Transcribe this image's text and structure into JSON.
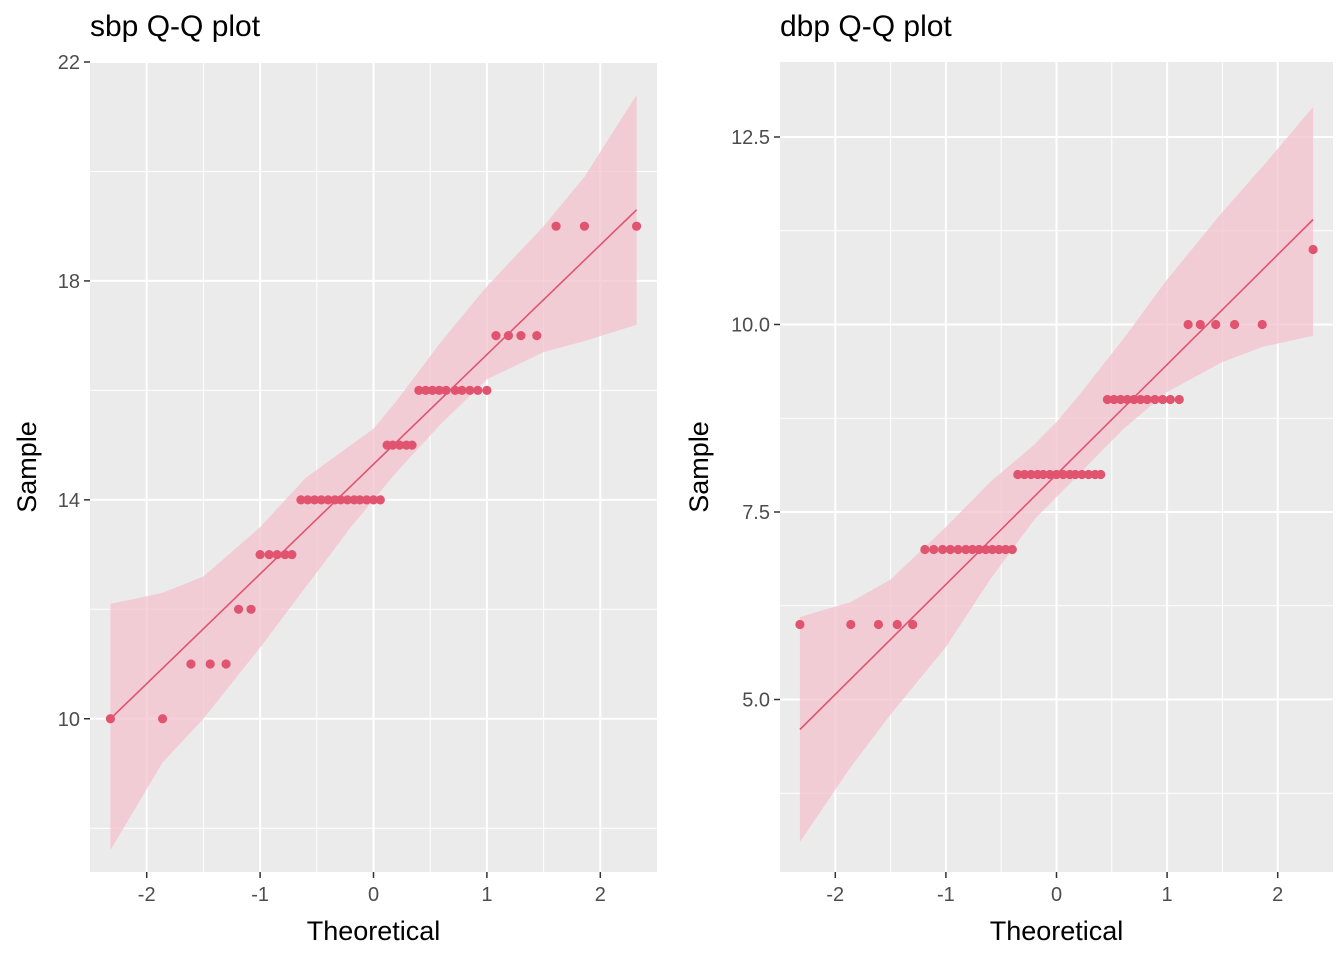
{
  "chart_data": [
    {
      "type": "scatter",
      "title": "sbp Q-Q plot",
      "xlabel": "Theoretical",
      "ylabel": "Sample",
      "xlim": [
        -2.5,
        2.5
      ],
      "ylim": [
        7.2,
        22
      ],
      "x_ticks": [
        -2,
        -1,
        0,
        1,
        2
      ],
      "x_tick_labels": [
        "-2",
        "-1",
        "0",
        "1",
        "2"
      ],
      "y_ticks": [
        10,
        14,
        18,
        22
      ],
      "y_tick_labels": [
        "10",
        "14",
        "18",
        "22"
      ],
      "grid": true,
      "colors": {
        "points": "#e05470",
        "line": "#e05470",
        "band": "#f4c2cc",
        "panel": "#ebebeb",
        "grid": "#ffffff"
      },
      "series": [
        {
          "x": [
            -2.32,
            -1.86,
            -1.61,
            -1.44,
            -1.3,
            -1.19,
            -1.08,
            -1.0,
            -0.92,
            -0.85,
            -0.78,
            -0.72,
            -0.64,
            -0.58,
            -0.52,
            -0.46,
            -0.4,
            -0.34,
            -0.29,
            -0.23,
            -0.17,
            -0.12,
            -0.06,
            0.0,
            0.06,
            0.12,
            0.17,
            0.23,
            0.29,
            0.34,
            0.4,
            0.46,
            0.52,
            0.58,
            0.64,
            0.72,
            0.78,
            0.85,
            0.92,
            1.0,
            1.08,
            1.19,
            1.3,
            1.44,
            1.61,
            1.86,
            2.32
          ],
          "y": [
            10,
            10,
            11,
            11,
            11,
            12,
            12,
            13,
            13,
            13,
            13,
            13,
            14,
            14,
            14,
            14,
            14,
            14,
            14,
            14,
            14,
            14,
            14,
            14,
            14,
            15,
            15,
            15,
            15,
            15,
            16,
            16,
            16,
            16,
            16,
            16,
            16,
            16,
            16,
            16,
            17,
            17,
            17,
            17,
            19,
            19,
            19
          ]
        }
      ],
      "reference_line": {
        "x": [
          -2.32,
          2.32
        ],
        "y": [
          10.0,
          19.3
        ]
      },
      "confidence_band": {
        "x": [
          -2.32,
          -1.86,
          -1.5,
          -1.0,
          -0.6,
          -0.2,
          0.0,
          0.2,
          0.6,
          1.0,
          1.5,
          1.86,
          2.32
        ],
        "lower": [
          7.6,
          9.2,
          10.0,
          11.3,
          12.4,
          13.5,
          14.0,
          14.5,
          15.4,
          16.2,
          16.7,
          16.9,
          17.2
        ],
        "upper": [
          12.1,
          12.3,
          12.6,
          13.5,
          14.4,
          15.0,
          15.3,
          15.8,
          16.9,
          17.9,
          19.0,
          19.9,
          21.4
        ]
      }
    },
    {
      "type": "scatter",
      "title": "dbp Q-Q plot",
      "xlabel": "Theoretical",
      "ylabel": "Sample",
      "xlim": [
        -2.5,
        2.5
      ],
      "ylim": [
        2.7,
        13.5
      ],
      "x_ticks": [
        -2,
        -1,
        0,
        1,
        2
      ],
      "x_tick_labels": [
        "-2",
        "-1",
        "0",
        "1",
        "2"
      ],
      "y_ticks": [
        5.0,
        7.5,
        10.0,
        12.5
      ],
      "y_tick_labels": [
        "5.0",
        "7.5",
        "10.0",
        "12.5"
      ],
      "grid": true,
      "colors": {
        "points": "#e05470",
        "line": "#e05470",
        "band": "#f4c2cc",
        "panel": "#ebebeb",
        "grid": "#ffffff"
      },
      "series": [
        {
          "x": [
            -2.32,
            -1.86,
            -1.61,
            -1.44,
            -1.3,
            -1.19,
            -1.11,
            -1.03,
            -0.96,
            -0.89,
            -0.82,
            -0.76,
            -0.7,
            -0.64,
            -0.58,
            -0.52,
            -0.46,
            -0.4,
            -0.35,
            -0.29,
            -0.23,
            -0.17,
            -0.12,
            -0.06,
            0.0,
            0.06,
            0.12,
            0.17,
            0.23,
            0.29,
            0.35,
            0.4,
            0.46,
            0.52,
            0.58,
            0.64,
            0.7,
            0.76,
            0.82,
            0.89,
            0.96,
            1.03,
            1.11,
            1.19,
            1.3,
            1.44,
            1.61,
            1.86,
            2.32
          ],
          "y": [
            6,
            6,
            6,
            6,
            6,
            7,
            7,
            7,
            7,
            7,
            7,
            7,
            7,
            7,
            7,
            7,
            7,
            7,
            8,
            8,
            8,
            8,
            8,
            8,
            8,
            8,
            8,
            8,
            8,
            8,
            8,
            8,
            9,
            9,
            9,
            9,
            9,
            9,
            9,
            9,
            9,
            9,
            9,
            10,
            10,
            10,
            10,
            10,
            11
          ]
        }
      ],
      "reference_line": {
        "x": [
          -2.32,
          2.32
        ],
        "y": [
          4.6,
          11.4
        ]
      },
      "confidence_band": {
        "x": [
          -2.32,
          -1.86,
          -1.5,
          -1.0,
          -0.6,
          -0.2,
          0.0,
          0.2,
          0.6,
          1.0,
          1.5,
          1.86,
          2.32
        ],
        "lower": [
          3.1,
          4.1,
          4.8,
          5.7,
          6.6,
          7.4,
          7.7,
          8.0,
          8.6,
          9.1,
          9.5,
          9.7,
          9.85
        ],
        "upper": [
          6.1,
          6.3,
          6.6,
          7.3,
          7.9,
          8.4,
          8.7,
          9.05,
          9.8,
          10.6,
          11.5,
          12.1,
          12.9
        ]
      }
    }
  ]
}
